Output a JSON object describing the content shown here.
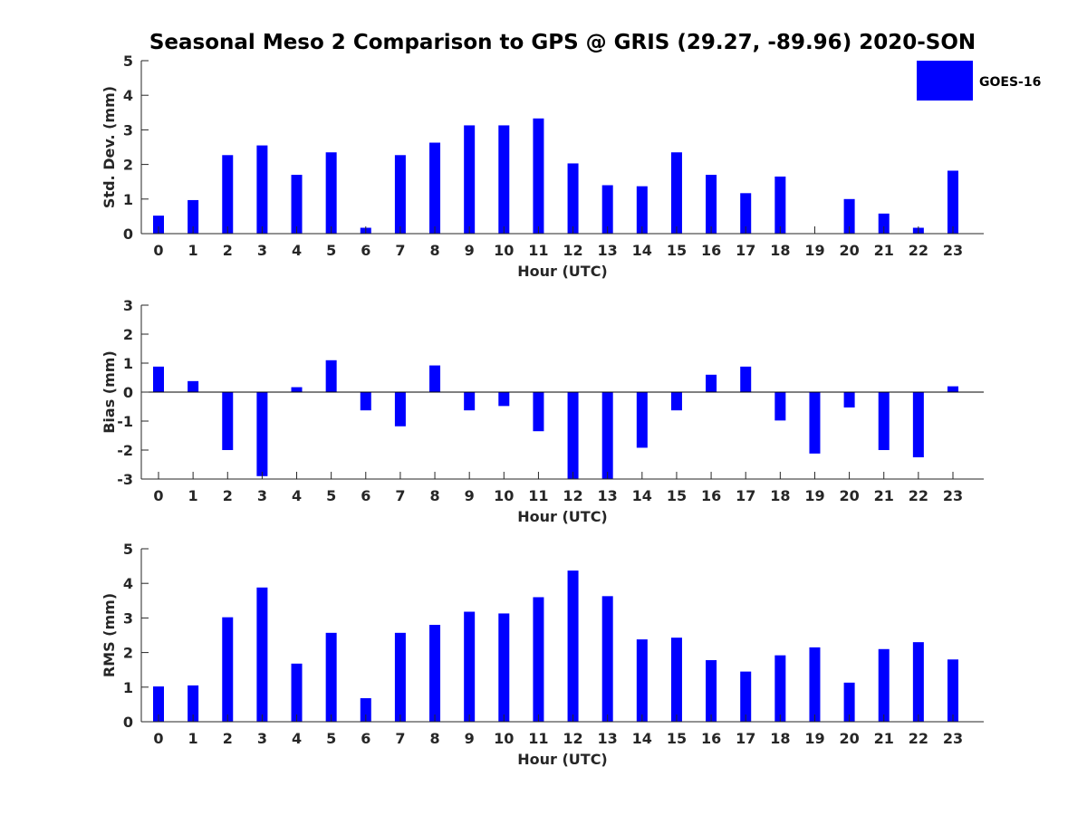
{
  "title": "Seasonal Meso 2 Comparison to GPS @ GRIS (29.27, -89.96) 2020-SON",
  "legend": {
    "label": "GOES-16",
    "color": "#0000ff",
    "placement": "top-right"
  },
  "colors": {
    "bar": "#0000ff",
    "axis": "#262626"
  },
  "chart_data": [
    {
      "type": "bar",
      "ylabel": "Std. Dev. (mm)",
      "xlabel": "Hour (UTC)",
      "ylim": [
        0,
        5
      ],
      "yticks": [
        0,
        1,
        2,
        3,
        4,
        5
      ],
      "categories": [
        0,
        1,
        2,
        3,
        4,
        5,
        6,
        7,
        8,
        9,
        10,
        11,
        12,
        13,
        14,
        15,
        16,
        17,
        18,
        19,
        20,
        21,
        22,
        23
      ],
      "series": [
        {
          "name": "GOES-16",
          "values": [
            0.52,
            0.97,
            2.27,
            2.55,
            1.7,
            2.35,
            0.17,
            2.27,
            2.63,
            3.13,
            3.13,
            3.33,
            2.03,
            1.4,
            1.37,
            2.35,
            1.7,
            1.17,
            1.65,
            0.0,
            1.0,
            0.58,
            0.17,
            1.82
          ]
        }
      ]
    },
    {
      "type": "bar",
      "ylabel": "Bias (mm)",
      "xlabel": "Hour (UTC)",
      "ylim": [
        -3,
        3
      ],
      "yticks": [
        -3,
        -2,
        -1,
        0,
        1,
        2,
        3
      ],
      "zero_line": true,
      "categories": [
        0,
        1,
        2,
        3,
        4,
        5,
        6,
        7,
        8,
        9,
        10,
        11,
        12,
        13,
        14,
        15,
        16,
        17,
        18,
        19,
        20,
        21,
        22,
        23
      ],
      "series": [
        {
          "name": "GOES-16",
          "values": [
            0.88,
            0.38,
            -2.0,
            -2.9,
            0.17,
            1.1,
            -0.63,
            -1.18,
            0.92,
            -0.63,
            -0.48,
            -1.35,
            -3.0,
            -3.0,
            -1.92,
            -0.63,
            0.6,
            0.88,
            -0.98,
            -2.12,
            -0.53,
            -2.0,
            -2.25,
            0.2
          ]
        }
      ]
    },
    {
      "type": "bar",
      "ylabel": "RMS (mm)",
      "xlabel": "Hour (UTC)",
      "ylim": [
        0,
        5
      ],
      "yticks": [
        0,
        1,
        2,
        3,
        4,
        5
      ],
      "categories": [
        0,
        1,
        2,
        3,
        4,
        5,
        6,
        7,
        8,
        9,
        10,
        11,
        12,
        13,
        14,
        15,
        16,
        17,
        18,
        19,
        20,
        21,
        22,
        23
      ],
      "series": [
        {
          "name": "GOES-16",
          "values": [
            1.02,
            1.05,
            3.02,
            3.88,
            1.68,
            2.57,
            0.68,
            2.57,
            2.8,
            3.18,
            3.13,
            3.6,
            4.37,
            3.63,
            2.38,
            2.43,
            1.78,
            1.45,
            1.92,
            2.15,
            1.13,
            2.1,
            2.3,
            1.8
          ]
        }
      ]
    }
  ]
}
